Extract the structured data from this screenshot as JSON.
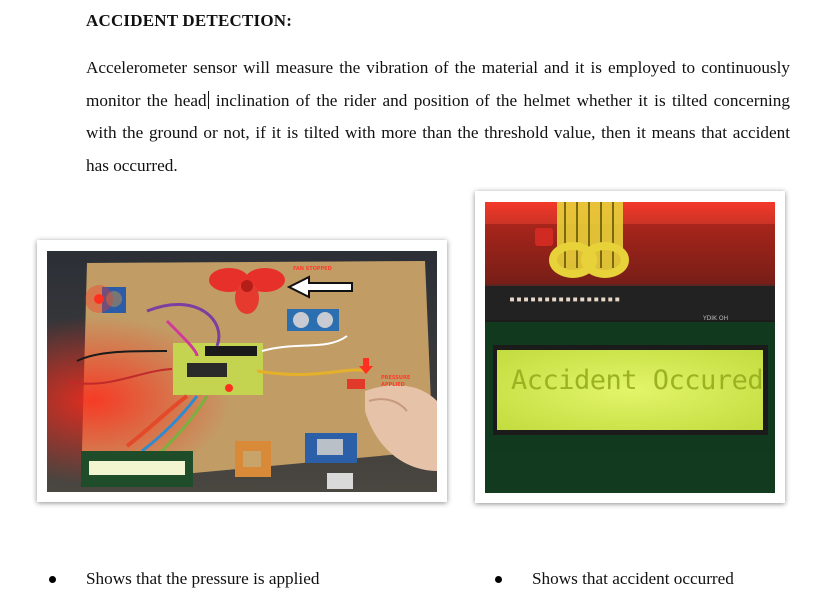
{
  "heading": "ACCIDENT DETECTION:",
  "paragraph": {
    "part1": "Accelerometer sensor will measure the vibration of the material and it is employed to continuously monitor the head",
    "part2": " inclination of the rider and position of the helmet whether it is tilted concerning with the ground or not, if it is tilted with more than the threshold value, then it means that accident has occurred."
  },
  "left_photo": {
    "fan_tag": "FAN STOPPED",
    "pressure_tag_line1": "PRESSURE",
    "pressure_tag_line2": "APPLIED"
  },
  "right_photo": {
    "lcd_text": "Accident Occured",
    "strip_text": "▪▪▪▪▪▪▪▪▪▪▪▪▪▪▪▪",
    "strip_label": "YDIK OH"
  },
  "bullets": [
    "Shows that the pressure is applied",
    "Shows that accident occurred"
  ],
  "colors": {
    "annotation_red": "#ff3b2b",
    "lcd_green": "#c9e64a",
    "board_wood": "#c8a46a"
  }
}
